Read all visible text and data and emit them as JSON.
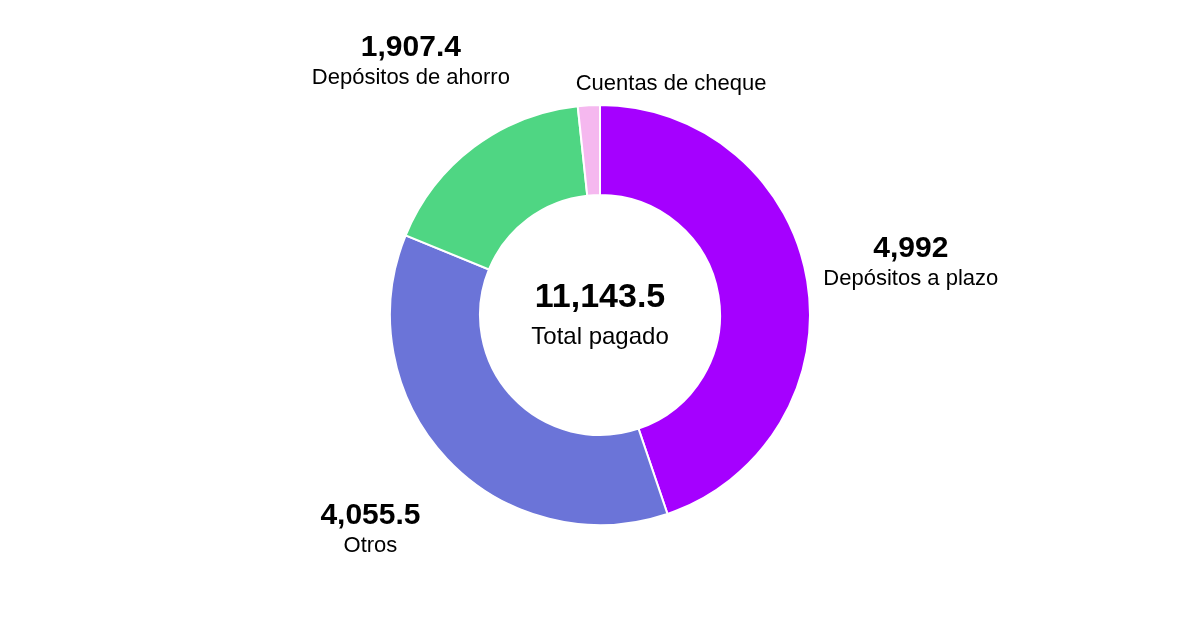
{
  "chart_data": {
    "type": "donut",
    "categories": [
      "Depósitos a plazo",
      "Otros",
      "Depósitos de ahorro",
      "Cuentas de cheque"
    ],
    "values": [
      4992,
      4055.5,
      1907.4,
      188.6
    ],
    "colors": [
      "#a500ff",
      "#6b74d8",
      "#4fd683",
      "#f5b8ef"
    ],
    "value_labels": [
      "4,992",
      "4,055.5",
      "1,907.4",
      null
    ],
    "annotations": [
      "11,143.5",
      "Total pagado"
    ]
  }
}
